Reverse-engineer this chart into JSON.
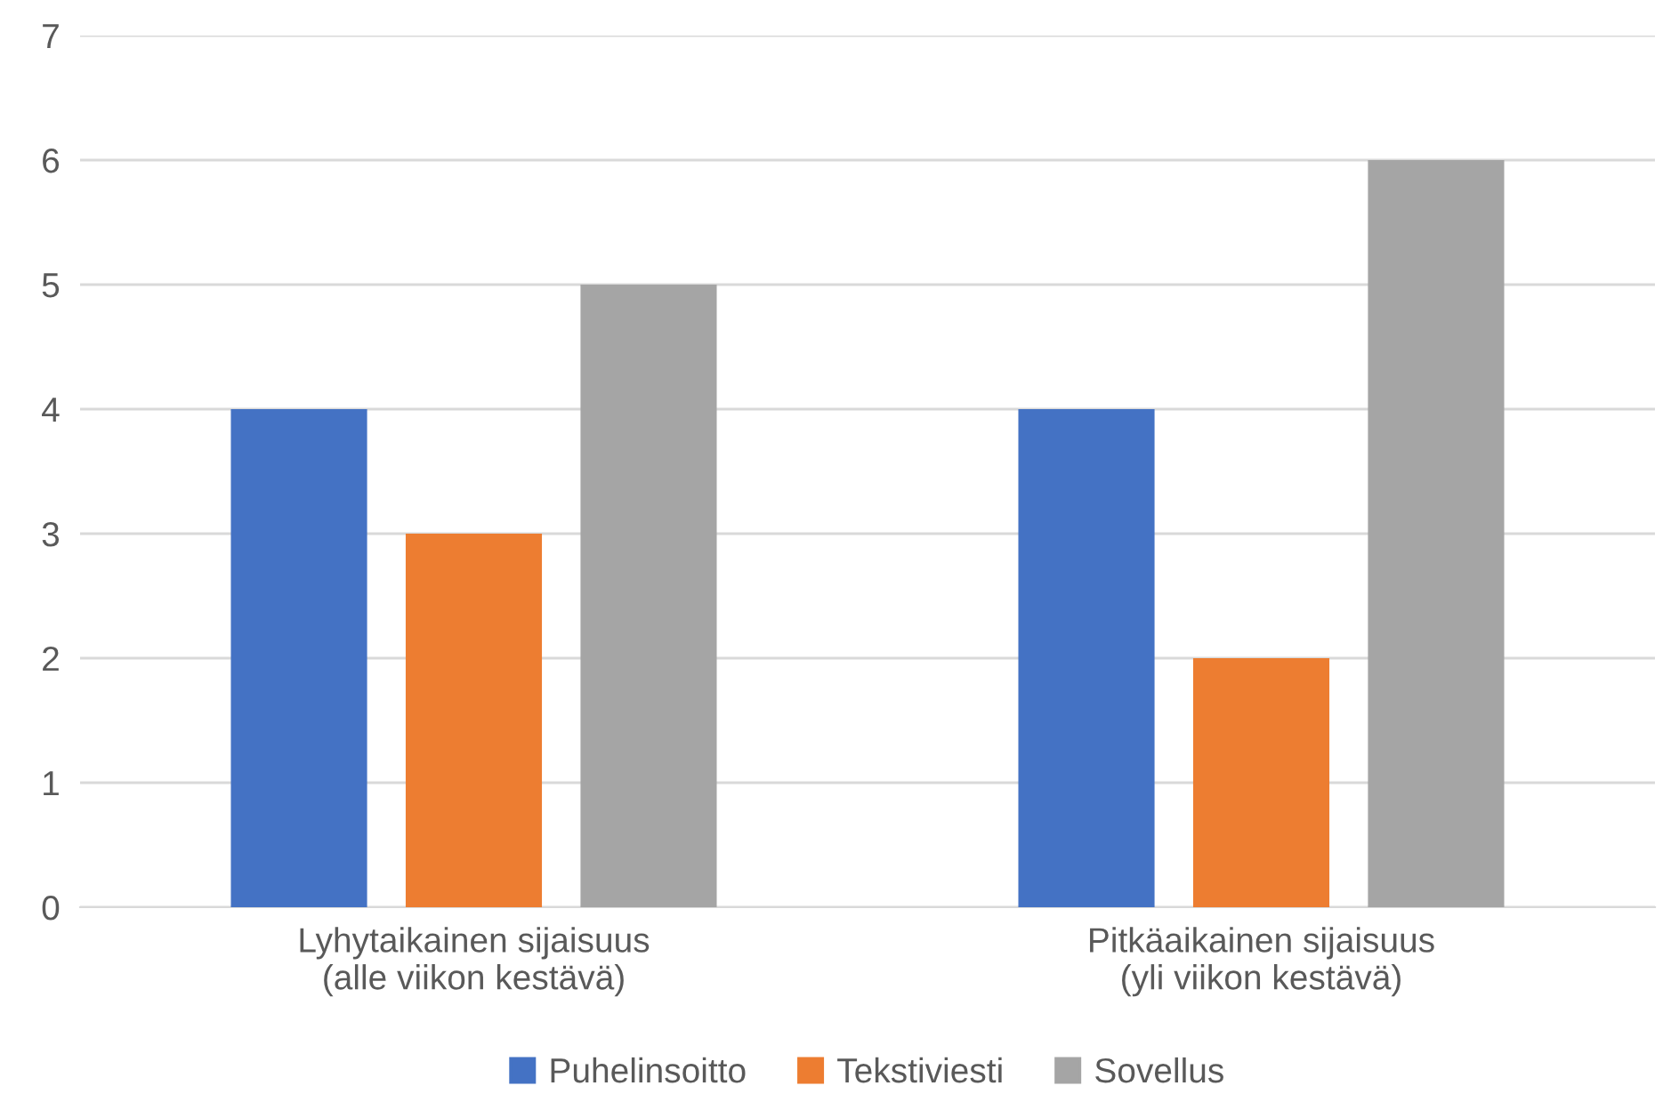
{
  "chart_data": {
    "type": "bar",
    "categories": [
      "Lyhytaikainen sijaisuus\n(alle viikon kestävä)",
      "Pitkäaikainen sijaisuus\n(yli viikon kestävä)"
    ],
    "series": [
      {
        "name": "Puhelinsoitto",
        "color": "#4472c4",
        "values": [
          4,
          4
        ]
      },
      {
        "name": "Tekstiviesti",
        "color": "#ed7d31",
        "values": [
          3,
          2
        ]
      },
      {
        "name": "Sovellus",
        "color": "#a5a5a5",
        "values": [
          5,
          6
        ]
      }
    ],
    "ylim": [
      0,
      7
    ],
    "yticks": [
      0,
      1,
      2,
      3,
      4,
      5,
      6,
      7
    ],
    "grid": "y",
    "legend": "bottom"
  }
}
